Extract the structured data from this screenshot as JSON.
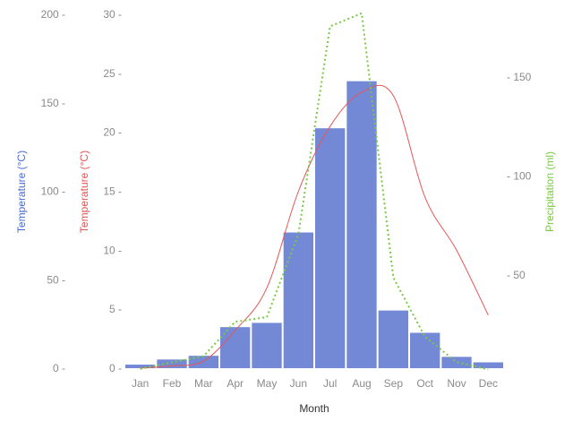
{
  "chart_data": {
    "type": "bar",
    "categories": [
      "Jan",
      "Feb",
      "Mar",
      "Apr",
      "May",
      "Jun",
      "Jul",
      "Aug",
      "Sep",
      "Oct",
      "Nov",
      "Dec"
    ],
    "xlabel": "Month",
    "axes": {
      "temp_bar": {
        "label": "Temperature (°C)",
        "ylim": [
          0,
          200
        ],
        "ticks": [
          0,
          50,
          100,
          150,
          200
        ],
        "color": "#4a6ccf",
        "side": "left-outer"
      },
      "temp_line": {
        "label": "Temperature (°C)",
        "ylim": [
          0,
          30
        ],
        "ticks": [
          0,
          5,
          10,
          15,
          20,
          25,
          30
        ],
        "color": "#e45756",
        "side": "left-inner"
      },
      "precip": {
        "label": "Precipitation (ml)",
        "ylim": [
          0,
          165
        ],
        "ticks": [
          50,
          100,
          150
        ],
        "color": "#7ac943",
        "side": "right"
      }
    },
    "series": [
      {
        "type": "bar",
        "axis": "temp_bar",
        "color": "#7389d6",
        "values": [
          2.0,
          4.9,
          7.0,
          23.2,
          25.6,
          76.7,
          135.6,
          162.2,
          32.6,
          20.0,
          6.4,
          3.3
        ]
      },
      {
        "type": "line",
        "style": "smooth",
        "axis": "temp_line",
        "color": "#e45756",
        "values": [
          0.0,
          0.2,
          0.6,
          3.2,
          6.8,
          15.0,
          20.5,
          23.4,
          23.1,
          14.5,
          10.0,
          4.5
        ]
      },
      {
        "type": "line",
        "style": "dotted",
        "axis": "precip",
        "color": "#7ac943",
        "values": [
          2.6,
          5.9,
          9.0,
          26.4,
          28.7,
          70.7,
          175.6,
          182.2,
          48.7,
          18.8,
          6.0,
          2.3
        ]
      }
    ]
  }
}
